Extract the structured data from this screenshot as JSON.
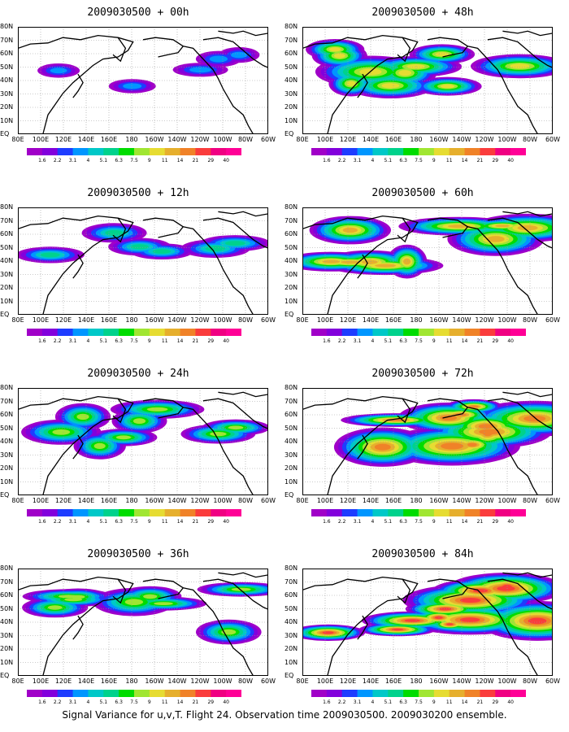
{
  "panels": [
    {
      "title": "2009030500 + 00h",
      "intensity": 0.15
    },
    {
      "title": "2009030500 + 48h",
      "intensity": 0.7
    },
    {
      "title": "2009030500 + 12h",
      "intensity": 0.3
    },
    {
      "title": "2009030500 + 60h",
      "intensity": 0.8
    },
    {
      "title": "2009030500 + 24h",
      "intensity": 0.5
    },
    {
      "title": "2009030500 + 72h",
      "intensity": 0.9
    },
    {
      "title": "2009030500 + 36h",
      "intensity": 0.6
    },
    {
      "title": "2009030500 + 84h",
      "intensity": 0.95
    }
  ],
  "axes": {
    "lat_labels": [
      "80N",
      "70N",
      "60N",
      "50N",
      "40N",
      "30N",
      "20N",
      "10N",
      "EQ"
    ],
    "lon_labels": [
      "80E",
      "100E",
      "120E",
      "140E",
      "160E",
      "180",
      "160W",
      "140W",
      "120W",
      "100W",
      "80W",
      "60W"
    ]
  },
  "colorbar": {
    "labels": [
      "1.6",
      "2.2",
      "3.1",
      "4",
      "5.1",
      "6.3",
      "7.5",
      "9",
      "11",
      "14",
      "21",
      "29",
      "40"
    ],
    "colors": [
      "#a000c8",
      "#8200dc",
      "#1e3cff",
      "#0096ff",
      "#00c8c8",
      "#00d28c",
      "#00dc00",
      "#a0e632",
      "#e6dc32",
      "#e6af2d",
      "#f08228",
      "#fa3c3c",
      "#f00082"
    ]
  },
  "caption": "Signal Variance for u,v,T. Flight 24. Observation time 2009030500. 2009030200 ensemble."
}
